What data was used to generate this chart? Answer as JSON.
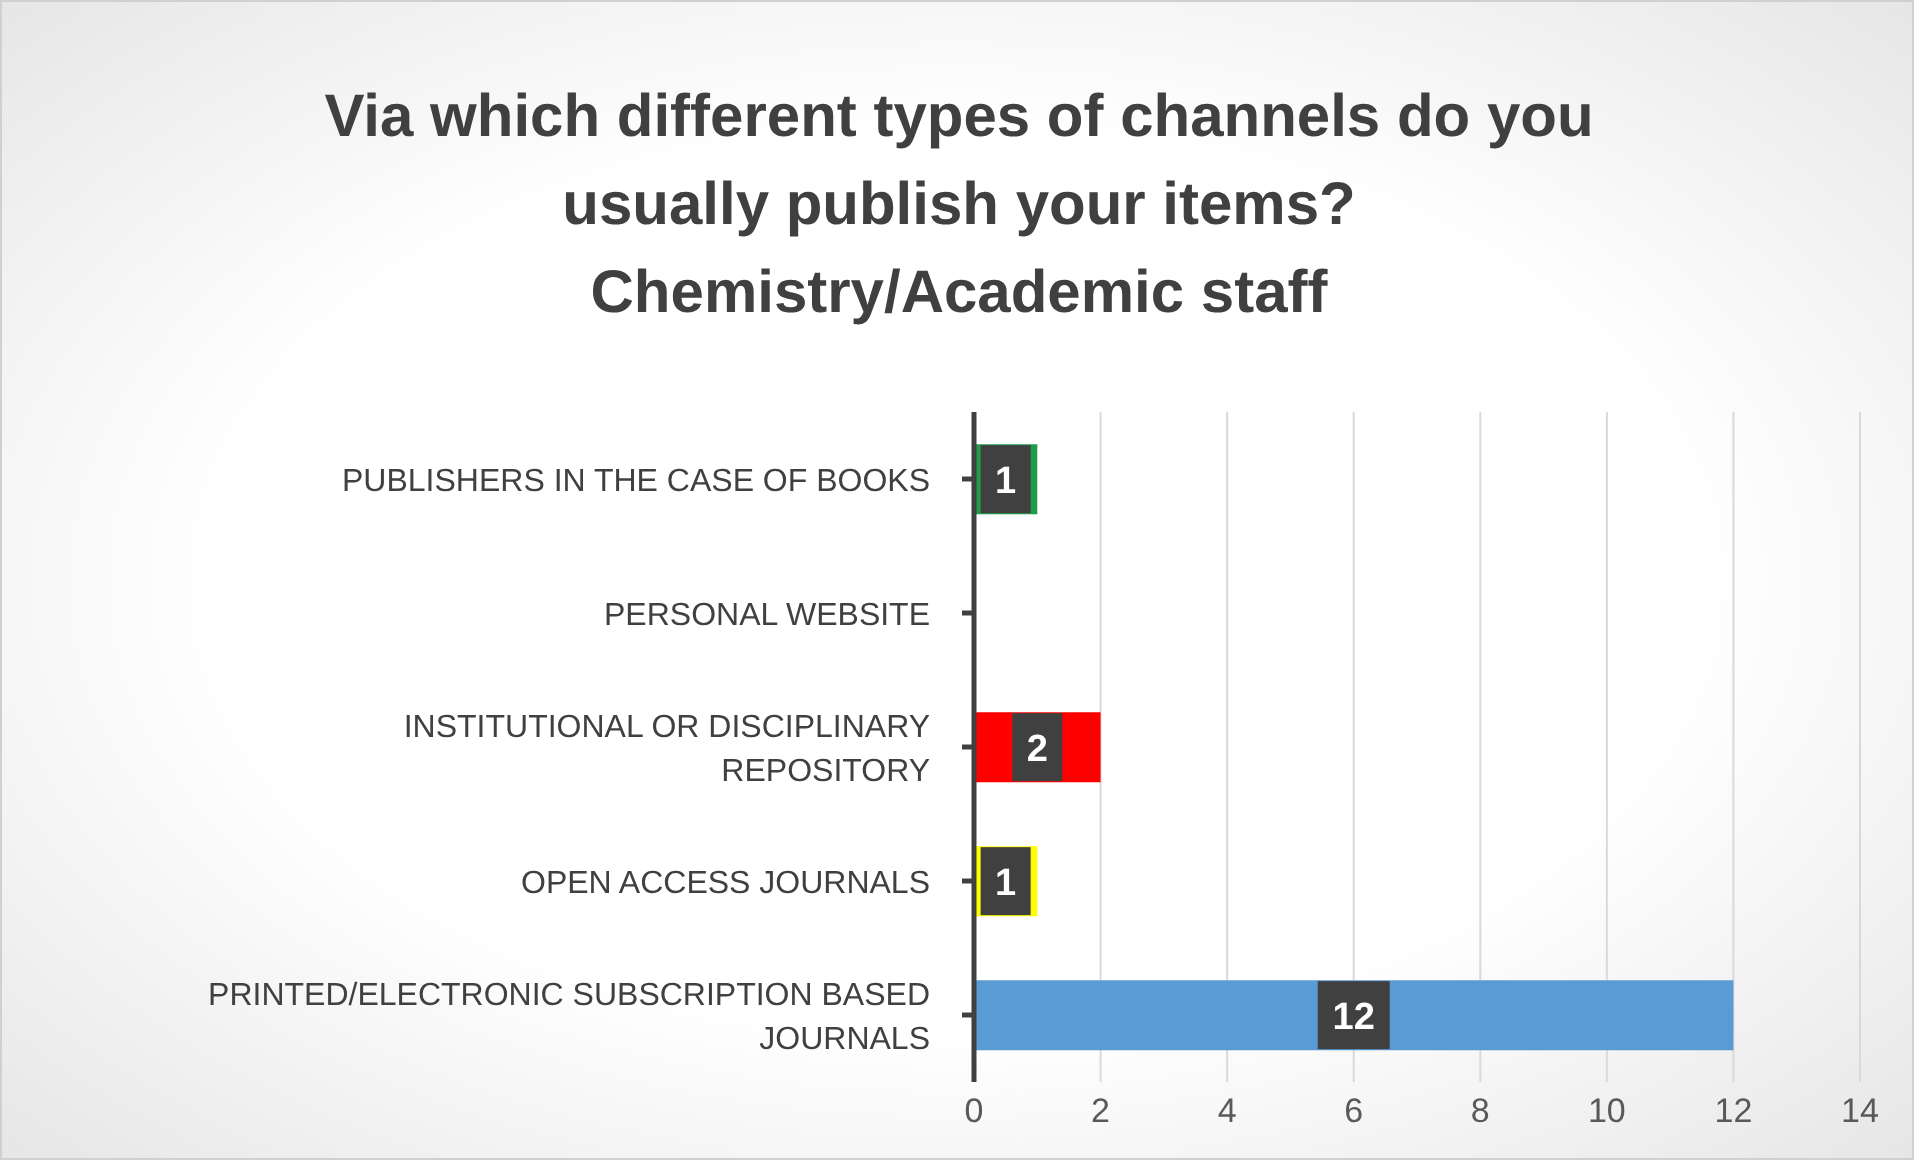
{
  "chart_data": {
    "type": "bar",
    "orientation": "horizontal",
    "title": "Via which different types of channels do you\nusually publish your items?\nChemistry/Academic staff",
    "categories": [
      "PUBLISHERS IN THE CASE OF BOOKS",
      "PERSONAL WEBSITE",
      "INSTITUTIONAL OR DISCIPLINARY REPOSITORY",
      "OPEN ACCESS JOURNALS",
      "PRINTED/ELECTRONIC SUBSCRIPTION BASED JOURNALS"
    ],
    "values": [
      1,
      0,
      2,
      1,
      12
    ],
    "value_labels": [
      "1",
      null,
      "2",
      "1",
      "12"
    ],
    "colors": [
      "#1e9c48",
      "#7f7f7f",
      "#ff0000",
      "#ffff00",
      "#5b9bd5"
    ],
    "xlim": [
      0,
      14
    ],
    "xticks": [
      0,
      2,
      4,
      6,
      8,
      10,
      12,
      14
    ],
    "grid": "x"
  }
}
